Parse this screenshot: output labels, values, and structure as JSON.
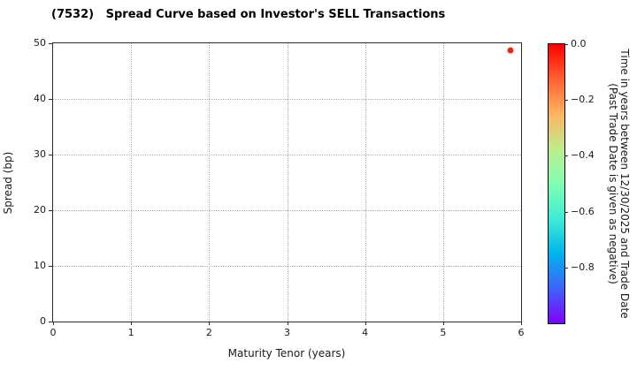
{
  "title": "(7532)   Spread Curve based on Investor's SELL Transactions",
  "chart_data": {
    "type": "scatter",
    "title": "(7532)   Spread Curve based on Investor's SELL Transactions",
    "xlabel": "Maturity Tenor (years)",
    "ylabel": "Spread (bp)",
    "xlim": [
      0,
      6
    ],
    "ylim": [
      0,
      50
    ],
    "x_ticks": [
      0,
      1,
      2,
      3,
      4,
      5,
      6
    ],
    "y_ticks": [
      0,
      10,
      20,
      30,
      40,
      50
    ],
    "grid": true,
    "grid_style": "dotted",
    "points": [
      {
        "x": 5.86,
        "y": 48.7,
        "color_value": 0.0,
        "color": "#f92111"
      }
    ],
    "colorbar": {
      "label_line1": "Time in years between 12/30/2025 and Trade Date",
      "label_line2": "(Past Trade Date is given as negative)",
      "range": [
        0.0,
        -1.0
      ],
      "ticks": [
        {
          "value": 0.0,
          "label": "0.0"
        },
        {
          "value": -0.2,
          "label": "−0.2"
        },
        {
          "value": -0.4,
          "label": "−0.4"
        },
        {
          "value": -0.6,
          "label": "−0.6"
        },
        {
          "value": -0.8,
          "label": "−0.8"
        }
      ],
      "colormap": "rainbow",
      "gradient_top_to_bottom": [
        "#ff0000",
        "#ff6232",
        "#ffb461",
        "#bfec8e",
        "#80ffb4",
        "#40ecd4",
        "#00b4ec",
        "#4062fa",
        "#8000ff"
      ]
    },
    "colors": {
      "spine": "#2b2b2b",
      "grid": "#b0b0b0",
      "text": "#1a1a1a"
    }
  }
}
